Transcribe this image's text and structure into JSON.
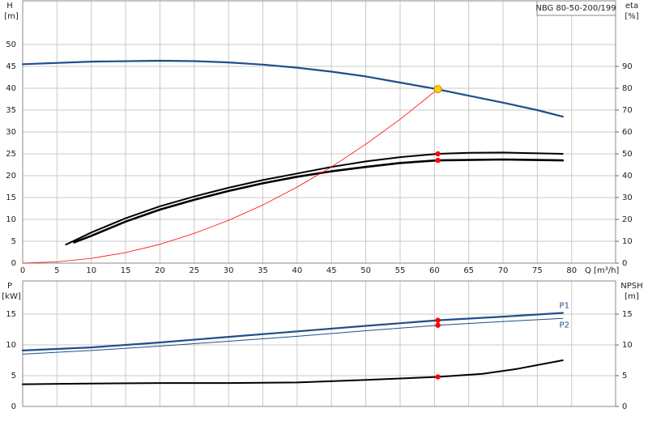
{
  "chart_data": [
    {
      "type": "line",
      "annotation": "NBG 80-50-200/199",
      "ylabel": "H",
      "yunit": "[m]",
      "y2label": "eta",
      "y2unit": "[%]",
      "xlabel": "Q [m³/h]",
      "xlim": [
        0,
        86.4
      ],
      "xticks": [
        0,
        5,
        10,
        15,
        20,
        25,
        30,
        35,
        40,
        45,
        50,
        55,
        60,
        65,
        70,
        75,
        80
      ],
      "ylim": [
        0,
        60
      ],
      "yticks": [
        0,
        5,
        10,
        15,
        20,
        25,
        30,
        35,
        40,
        45,
        50
      ],
      "y2lim": [
        0,
        120
      ],
      "y2ticks": [
        0,
        10,
        20,
        30,
        40,
        50,
        60,
        70,
        80,
        90
      ],
      "grid": true,
      "series": [
        {
          "color": "#1f4e8c",
          "width": 2.2,
          "axis": "y",
          "x": [
            0,
            10,
            20,
            25,
            30,
            35,
            40,
            45,
            50,
            55,
            60,
            65,
            70,
            75,
            78.7
          ],
          "values": [
            45.5,
            46.1,
            46.3,
            46.2,
            45.9,
            45.4,
            44.7,
            43.8,
            42.7,
            41.3,
            39.9,
            38.3,
            36.7,
            35,
            33.5
          ]
        },
        {
          "color": "#000000",
          "width": 2,
          "axis": "y2",
          "x": [
            6.3,
            10,
            15,
            20,
            25,
            30,
            35,
            40,
            45,
            50,
            55,
            60.5,
            65,
            70,
            78.7
          ],
          "values": [
            8.5,
            14,
            20.5,
            26,
            30.5,
            34.5,
            38,
            41,
            44,
            46.5,
            48.5,
            50,
            50.5,
            50.6,
            50
          ]
        },
        {
          "color": "#000000",
          "width": 2.6,
          "axis": "y2",
          "x": [
            7.5,
            10,
            15,
            20,
            25,
            30,
            35,
            40,
            45,
            50,
            55,
            60.5,
            70,
            78.7
          ],
          "values": [
            9.5,
            12.5,
            19,
            24.5,
            29,
            33,
            36.5,
            39.5,
            42,
            44,
            45.8,
            47,
            47.4,
            47
          ]
        },
        {
          "color": "#ff0000",
          "width": 0.8,
          "axis": "y",
          "x": [
            0,
            5,
            10,
            15,
            20,
            25,
            30,
            35,
            40,
            45,
            50,
            55,
            60.5
          ],
          "values": [
            0,
            0.3,
            1.1,
            2.4,
            4.3,
            6.8,
            9.8,
            13.3,
            17.4,
            22,
            27.2,
            32.9,
            39.8
          ]
        }
      ],
      "points": [
        {
          "x": 60.5,
          "y": 50,
          "axis": "y2",
          "color": "#ff0000"
        },
        {
          "x": 60.5,
          "y": 47,
          "axis": "y2",
          "color": "#ff0000"
        },
        {
          "x": 60.5,
          "y": 39.8,
          "axis": "y",
          "color": "#ffd000"
        }
      ]
    },
    {
      "type": "line",
      "ylabel": "P",
      "yunit": "[kW]",
      "y2label": "NPSH",
      "y2unit": "[m]",
      "xlim": [
        0,
        86.4
      ],
      "ylim": [
        0,
        20.4
      ],
      "yticks": [
        0,
        5,
        10,
        15
      ],
      "y2lim": [
        0,
        20.4
      ],
      "y2ticks": [
        0,
        5,
        10,
        15
      ],
      "grid": true,
      "series": [
        {
          "name": "P1",
          "color": "#1f4e8c",
          "width": 2.2,
          "axis": "y",
          "x": [
            0,
            10,
            20,
            30,
            40,
            50,
            60.5,
            70,
            78.7
          ],
          "values": [
            9.1,
            9.6,
            10.4,
            11.3,
            12.2,
            13.1,
            14,
            14.6,
            15.2
          ]
        },
        {
          "name": "P2",
          "color": "#1f4e8c",
          "width": 1,
          "axis": "y",
          "x": [
            0,
            10,
            20,
            30,
            40,
            50,
            60.5,
            70,
            78.7
          ],
          "values": [
            8.5,
            9.1,
            9.8,
            10.6,
            11.4,
            12.3,
            13.2,
            13.8,
            14.3
          ]
        },
        {
          "color": "#000000",
          "width": 2,
          "axis": "y2",
          "x": [
            0,
            8,
            20,
            30,
            40,
            50,
            60.5,
            67,
            72,
            78.7
          ],
          "values": [
            3.6,
            3.7,
            3.8,
            3.8,
            3.9,
            4.3,
            4.8,
            5.3,
            6.1,
            7.5
          ]
        }
      ],
      "points": [
        {
          "x": 60.5,
          "y": 14,
          "axis": "y",
          "color": "#ff0000"
        },
        {
          "x": 60.5,
          "y": 13.2,
          "axis": "y",
          "color": "#ff0000"
        },
        {
          "x": 60.5,
          "y": 4.8,
          "axis": "y2",
          "color": "#ff0000"
        }
      ]
    }
  ]
}
